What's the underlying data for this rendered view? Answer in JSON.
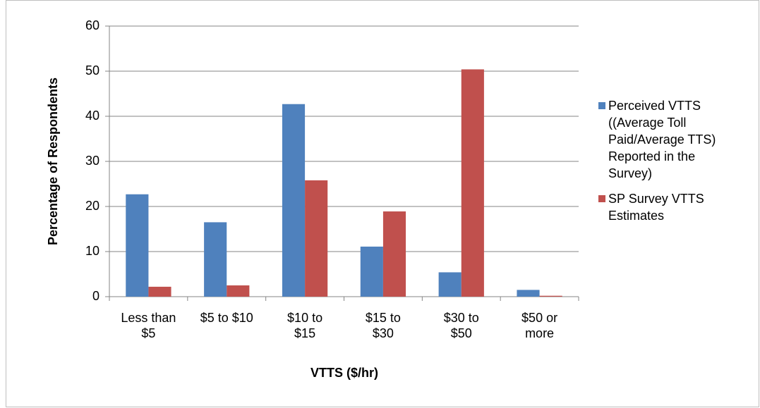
{
  "chart_data": {
    "type": "bar",
    "categories": [
      "Less than $5",
      "$5 to $10",
      "$10 to $15",
      "$15 to $30",
      "$30 to $50",
      "$50 or more"
    ],
    "series": [
      {
        "name": "Perceived VTTS ((Average Toll Paid/Average TTS) Reported in the Survey)",
        "color": "#4f81bd",
        "values": [
          22.7,
          16.5,
          42.7,
          11.1,
          5.4,
          1.5
        ]
      },
      {
        "name": "SP Survey VTTS Estimates",
        "color": "#c0504d",
        "values": [
          2.2,
          2.5,
          25.8,
          18.9,
          50.4,
          0.2
        ]
      }
    ],
    "xlabel": "VTTS ($/hr)",
    "ylabel": "Percentage of Respondents",
    "ylim": [
      0,
      60
    ],
    "yticks": [
      0,
      10,
      20,
      30,
      40,
      50,
      60
    ],
    "grid": true,
    "legend": "right"
  }
}
